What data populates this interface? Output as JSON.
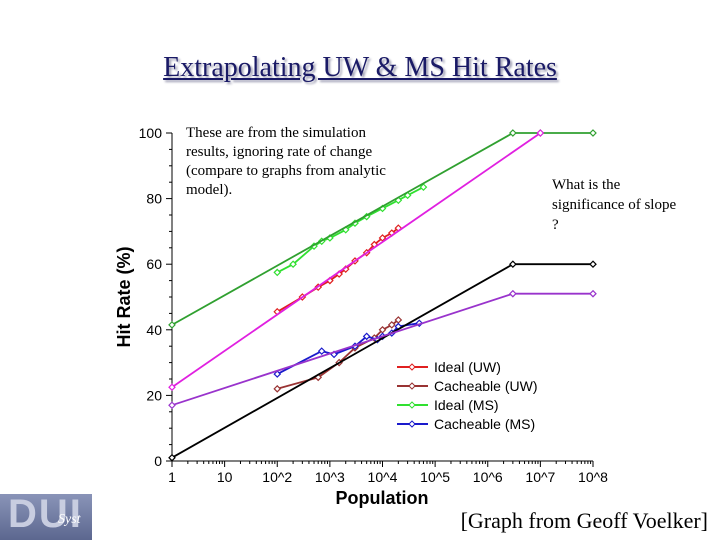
{
  "slide": {
    "title": "Extrapolating UW & MS Hit Rates",
    "note_left": "These are from the simulation results, ignoring rate of change (compare to graphs from analytic model).",
    "note_right": "What is the significance of slope ?",
    "credit": "[Graph from Geoff Voelker]",
    "logo_text": "DUI",
    "logo_subtext": "Syst"
  },
  "chart_data": {
    "type": "line",
    "xlabel": "Population",
    "ylabel": "Hit Rate (%)",
    "x_scale": "log",
    "xlim": [
      1,
      100000000
    ],
    "ylim": [
      0,
      100
    ],
    "x_ticks": [
      {
        "value": 1,
        "label": "1"
      },
      {
        "value": 10,
        "label": "10"
      },
      {
        "value": 100,
        "label": "10^2"
      },
      {
        "value": 1000,
        "label": "10^3"
      },
      {
        "value": 10000,
        "label": "10^4"
      },
      {
        "value": 100000,
        "label": "10^5"
      },
      {
        "value": 1000000,
        "label": "10^6"
      },
      {
        "value": 10000000,
        "label": "10^7"
      },
      {
        "value": 100000000,
        "label": "10^8"
      }
    ],
    "y_ticks": [
      {
        "value": 0,
        "label": "0"
      },
      {
        "value": 20,
        "label": "20"
      },
      {
        "value": 40,
        "label": "40"
      },
      {
        "value": 60,
        "label": "60"
      },
      {
        "value": 80,
        "label": "80"
      },
      {
        "value": 100,
        "label": "100"
      }
    ],
    "legend_position": "bottom-right",
    "series": [
      {
        "name": "Ideal (UW)",
        "color": "#e02020",
        "marker": true,
        "x": [
          100,
          300,
          600,
          1000,
          1500,
          2000,
          3000,
          5000,
          7000,
          10000,
          15000,
          20000
        ],
        "y": [
          45.5,
          50,
          53,
          55,
          57,
          58.5,
          61,
          63.5,
          66,
          68,
          69.5,
          71
        ]
      },
      {
        "name": "Cacheable (UW)",
        "color": "#993333",
        "marker": true,
        "x": [
          100,
          600,
          1500,
          3000,
          7000,
          10000,
          15000,
          20000
        ],
        "y": [
          22,
          25.5,
          30,
          34.5,
          37.5,
          40,
          41.5,
          43
        ]
      },
      {
        "name": "Ideal (MS)",
        "color": "#30e030",
        "marker": true,
        "x": [
          100,
          200,
          500,
          700,
          1000,
          2000,
          3000,
          5000,
          10000,
          20000,
          30000,
          60000
        ],
        "y": [
          57.5,
          60,
          65.5,
          67,
          68,
          70.5,
          72.5,
          74.5,
          77,
          79.5,
          81,
          83.5
        ]
      },
      {
        "name": "Cacheable (MS)",
        "color": "#1a1acc",
        "marker": true,
        "x": [
          100,
          700,
          1200,
          3000,
          5000,
          8000,
          10000,
          15000,
          20000,
          50000
        ],
        "y": [
          26.5,
          33.5,
          32.5,
          35,
          38,
          37,
          38,
          39,
          41,
          42
        ]
      },
      {
        "name": "",
        "color": "#30a030",
        "marker": true,
        "x": [
          1,
          3000000,
          10000000,
          100000000
        ],
        "y": [
          41.5,
          100,
          100,
          100
        ]
      },
      {
        "name": "",
        "color": "#e020e0",
        "marker": true,
        "x": [
          1,
          10000000
        ],
        "y": [
          22.5,
          100
        ]
      },
      {
        "name": "",
        "color": "#000000",
        "marker": true,
        "x": [
          1,
          3000000,
          100000000
        ],
        "y": [
          1,
          60,
          60
        ]
      },
      {
        "name": "",
        "color": "#9933cc",
        "marker": true,
        "x": [
          1,
          3000000,
          100000000
        ],
        "y": [
          17,
          51,
          51
        ]
      }
    ]
  }
}
